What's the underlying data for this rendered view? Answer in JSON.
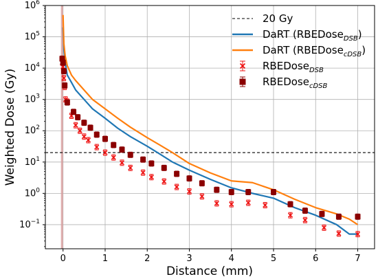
{
  "chart_data": {
    "type": "line",
    "xlabel": "Distance (mm)",
    "ylabel": "Weighted Dose (Gy)",
    "xlim": [
      -0.42,
      7.4
    ],
    "ylim": [
      0.017,
      1000000
    ],
    "yscale": "log",
    "grid": true,
    "legend_position": "top-right",
    "x_ticks": [
      0,
      1,
      2,
      3,
      4,
      5,
      6,
      7
    ],
    "y_ticks": [
      {
        "value": 0.1,
        "base": "10",
        "exp": "−1"
      },
      {
        "value": 1,
        "base": "10",
        "exp": "0"
      },
      {
        "value": 10,
        "base": "10",
        "exp": "1"
      },
      {
        "value": 100,
        "base": "10",
        "exp": "2"
      },
      {
        "value": 1000,
        "base": "10",
        "exp": "3"
      },
      {
        "value": 10000,
        "base": "10",
        "exp": "4"
      },
      {
        "value": 100000,
        "base": "10",
        "exp": "5"
      },
      {
        "value": 1000000,
        "base": "10",
        "exp": "6"
      }
    ],
    "reference_line": {
      "y": 20,
      "legend": "20 Gy",
      "color": "#000000",
      "dash": true
    },
    "shaded_band": {
      "x": [
        -0.05,
        0.0
      ],
      "color": "#d9a0a0"
    },
    "series": [
      {
        "legend_main": "DaRT (RBEDose",
        "legend_sub": "DSB",
        "legend_tail": ")",
        "kind": "line",
        "color": "#1f77b4",
        "x": [
          0,
          0.02,
          0.05,
          0.1,
          0.2,
          0.3,
          0.5,
          0.7,
          1.0,
          1.3,
          1.6,
          2.0,
          2.3,
          2.6,
          3.0,
          3.5,
          4.0,
          4.5,
          5.0,
          5.5,
          6.0,
          6.5,
          6.8,
          7.0
        ],
        "y": [
          200000,
          40000,
          15000,
          6000,
          3500,
          2000,
          1000,
          500,
          250,
          120,
          65,
          32,
          18,
          10,
          5.5,
          2.8,
          1.5,
          1.0,
          0.7,
          0.35,
          0.2,
          0.1,
          0.05,
          0.05
        ]
      },
      {
        "legend_main": "DaRT (RBEDose",
        "legend_sub": "cDSB",
        "legend_tail": ")",
        "kind": "line",
        "color": "#ff7f0e",
        "x": [
          0,
          0.02,
          0.05,
          0.1,
          0.2,
          0.3,
          0.5,
          0.7,
          1.0,
          1.3,
          1.6,
          2.0,
          2.3,
          2.6,
          3.0,
          3.5,
          4.0,
          4.5,
          5.0,
          5.5,
          6.0,
          6.5,
          6.8,
          7.0
        ],
        "y": [
          500000,
          60000,
          25000,
          12000,
          6000,
          4000,
          2000,
          1000,
          500,
          250,
          130,
          60,
          35,
          20,
          9,
          4.5,
          2.5,
          2.2,
          1.3,
          0.65,
          0.35,
          0.22,
          0.15,
          0.1
        ]
      },
      {
        "legend_main": "RBEDose",
        "legend_sub": "DSB",
        "legend_tail": "",
        "kind": "errorbar",
        "marker": "x",
        "color": "#ee1111",
        "x": [
          -0.02,
          0.0,
          0.02,
          0.04,
          0.06,
          0.1,
          0.2,
          0.3,
          0.4,
          0.5,
          0.6,
          0.8,
          1.0,
          1.2,
          1.4,
          1.6,
          1.9,
          2.1,
          2.4,
          2.7,
          3.0,
          3.3,
          3.65,
          4.0,
          4.4,
          4.8,
          5.4,
          5.75,
          6.2,
          6.55,
          7.0
        ],
        "y": [
          15000,
          11000,
          4800,
          2500,
          1000,
          850,
          300,
          150,
          100,
          65,
          50,
          30,
          20,
          14,
          9.5,
          6.5,
          4.6,
          3.3,
          2.4,
          1.6,
          1.15,
          0.8,
          0.48,
          0.45,
          0.5,
          0.42,
          0.2,
          0.14,
          0.08,
          0.052,
          0.05
        ]
      },
      {
        "legend_main": "RBEDose",
        "legend_sub": "cDSB",
        "legend_tail": "",
        "kind": "errorbar",
        "marker": "square",
        "color": "#8b0000",
        "x": [
          -0.02,
          0.0,
          0.02,
          0.04,
          0.1,
          0.25,
          0.35,
          0.5,
          0.65,
          0.8,
          1.0,
          1.2,
          1.4,
          1.6,
          1.9,
          2.1,
          2.4,
          2.7,
          3.0,
          3.3,
          3.65,
          4.0,
          4.4,
          5.0,
          5.4,
          5.75,
          6.15,
          6.55,
          7.0
        ],
        "y": [
          20000,
          15000,
          8000,
          2800,
          800,
          400,
          270,
          180,
          125,
          75,
          55,
          35,
          25,
          17,
          12,
          9,
          6.5,
          4.2,
          3.0,
          2.1,
          1.3,
          1.1,
          1.1,
          1.1,
          0.45,
          0.28,
          0.22,
          0.18,
          0.18
        ]
      }
    ]
  }
}
